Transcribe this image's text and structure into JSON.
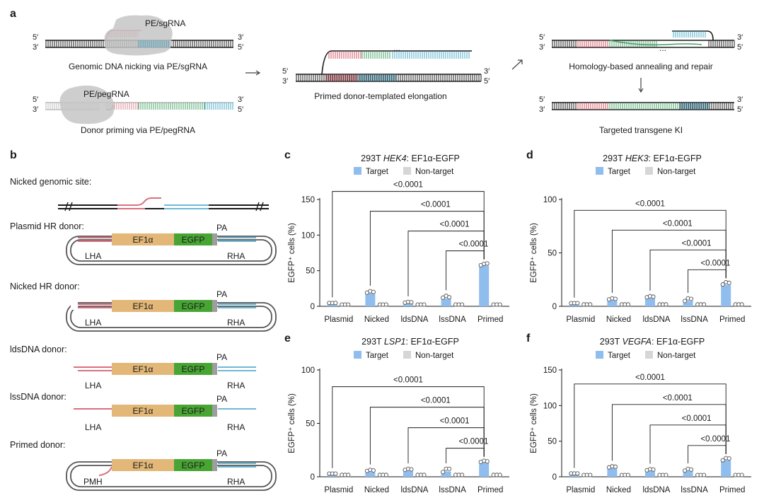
{
  "panel_a": {
    "letter": "a",
    "five": "5′",
    "three": "3′",
    "pe_sgrna": "PE/sgRNA",
    "pe_pegrna": "PE/pegRNA",
    "caption_nicking": "Genomic DNA nicking via PE/sgRNA",
    "caption_priming": "Donor priming via PE/pegRNA",
    "caption_elongation": "Primed donor-templated elongation",
    "ellipsis": "...",
    "caption_annealing": "Homology-based annealing and repair",
    "caption_ki": "Targeted transgene KI"
  },
  "panel_b": {
    "letter": "b",
    "site_label": "Nicked genomic site:",
    "donors": [
      {
        "title": "Plasmid HR donor:",
        "left_arm": "LHA",
        "promoter": "EF1α",
        "gene": "EGFP",
        "polya": "PA",
        "right_arm": "RHA"
      },
      {
        "title": "Nicked HR donor:",
        "left_arm": "LHA",
        "promoter": "EF1α",
        "gene": "EGFP",
        "polya": "PA",
        "right_arm": "RHA"
      },
      {
        "title": "ldsDNA donor:",
        "left_arm": "LHA",
        "promoter": "EF1α",
        "gene": "EGFP",
        "polya": "PA",
        "right_arm": "RHA"
      },
      {
        "title": "lssDNA donor:",
        "left_arm": "LHA",
        "promoter": "EF1α",
        "gene": "EGFP",
        "polya": "PA",
        "right_arm": "RHA"
      },
      {
        "title": "Primed donor:",
        "left_arm": "PMH",
        "promoter": "EF1α",
        "gene": "EGFP",
        "polya": "PA",
        "right_arm": "RHA"
      }
    ]
  },
  "colors": {
    "target": "#8fbdee",
    "nontarget": "#d6d6d6",
    "lha": "#d9707f",
    "rha": "#6fb8d6",
    "ef1a": "#e2b777",
    "egfp": "#48a534",
    "pa": "#9e9e9e",
    "green_strand": "#46a065",
    "cyan_strand": "#45a9c8",
    "red_strand": "#d0505f",
    "enzyme": "#c6c6c6"
  },
  "legend": {
    "target": "Target",
    "nontarget": "Non-target"
  },
  "chart_data": [
    {
      "panel": "c",
      "type": "bar",
      "title_prefix": "293T ",
      "title_gene": "HEK4",
      "title_suffix": ": EF1α-EGFP",
      "ylabel": "EGFP⁺ cells (%)",
      "ylim": [
        0,
        150
      ],
      "yticks": [
        0,
        50,
        100,
        150
      ],
      "categories": [
        "Plasmid",
        "Nicked",
        "ldsDNA",
        "lssDNA",
        "Primed"
      ],
      "series": [
        {
          "name": "Target",
          "values": [
            2.5,
            18,
            3.5,
            11,
            57
          ],
          "points": [
            [
              2.5,
              2.4,
              2.6
            ],
            [
              17,
              19,
              18
            ],
            [
              3,
              4,
              3.5
            ],
            [
              10,
              12.5,
              10.5
            ],
            [
              55.5,
              57.5,
              58
            ]
          ]
        },
        {
          "name": "Non-target",
          "values": [
            0.3,
            0.3,
            0.3,
            0.3,
            0.3
          ],
          "points": [
            [
              0.3,
              0.3,
              0.3
            ],
            [
              0.3,
              0.3,
              0.3
            ],
            [
              0.3,
              0.3,
              0.3
            ],
            [
              0.3,
              0.3,
              0.3
            ],
            [
              0.3,
              0.3,
              0.3
            ]
          ]
        }
      ],
      "comparisons": [
        {
          "from": "Plasmid",
          "to": "Primed",
          "p": "<0.0001"
        },
        {
          "from": "Nicked",
          "to": "Primed",
          "p": "<0.0001"
        },
        {
          "from": "ldsDNA",
          "to": "Primed",
          "p": "<0.0001"
        },
        {
          "from": "lssDNA",
          "to": "Primed",
          "p": "<0.0001"
        }
      ]
    },
    {
      "panel": "d",
      "type": "bar",
      "title_prefix": "293T ",
      "title_gene": "HEK3",
      "title_suffix": ": EF1α-EGFP",
      "ylabel": "EGFP⁺ cells (%)",
      "ylim": [
        0,
        100
      ],
      "yticks": [
        0,
        50,
        100
      ],
      "categories": [
        "Plasmid",
        "Nicked",
        "ldsDNA",
        "lssDNA",
        "Primed"
      ],
      "series": [
        {
          "name": "Target",
          "values": [
            1.5,
            5.5,
            7.5,
            5,
            20
          ],
          "points": [
            [
              1.5,
              1.5,
              1.5
            ],
            [
              5,
              6,
              5.5
            ],
            [
              7,
              8,
              7.5
            ],
            [
              3.5,
              6,
              5.5
            ],
            [
              19,
              21,
              20.5
            ]
          ]
        },
        {
          "name": "Non-target",
          "values": [
            0.3,
            0.3,
            0.3,
            0.3,
            0.3
          ],
          "points": [
            [
              0.3,
              0.3,
              0.3
            ],
            [
              0.3,
              0.3,
              0.3
            ],
            [
              0.3,
              0.3,
              0.3
            ],
            [
              0.3,
              0.3,
              0.3
            ],
            [
              0.3,
              0.3,
              0.3
            ]
          ]
        }
      ],
      "comparisons": [
        {
          "from": "Plasmid",
          "to": "Primed",
          "p": "<0.0001"
        },
        {
          "from": "Nicked",
          "to": "Primed",
          "p": "<0.0001"
        },
        {
          "from": "ldsDNA",
          "to": "Primed",
          "p": "<0.0001"
        },
        {
          "from": "lssDNA",
          "to": "Primed",
          "p": "<0.0001"
        }
      ]
    },
    {
      "panel": "e",
      "type": "bar",
      "title_prefix": "293T ",
      "title_gene": "LSP1",
      "title_suffix": ": EF1α-EGFP",
      "ylabel": "EGFP⁺ cells (%)",
      "ylim": [
        0,
        100
      ],
      "yticks": [
        0,
        50,
        100
      ],
      "categories": [
        "Plasmid",
        "Nicked",
        "ldsDNA",
        "lssDNA",
        "Primed"
      ],
      "series": [
        {
          "name": "Target",
          "values": [
            1.5,
            4.5,
            5.5,
            5,
            13
          ],
          "points": [
            [
              1.5,
              1.5,
              1.5
            ],
            [
              4,
              5,
              4.5
            ],
            [
              5,
              6,
              5.5
            ],
            [
              3,
              6,
              6
            ],
            [
              12.5,
              13.5,
              13
            ]
          ]
        },
        {
          "name": "Non-target",
          "values": [
            0.3,
            0.3,
            0.3,
            0.3,
            0.3
          ],
          "points": [
            [
              0.3,
              0.3,
              0.3
            ],
            [
              0.3,
              0.3,
              0.3
            ],
            [
              0.3,
              0.3,
              0.3
            ],
            [
              0.3,
              0.3,
              0.3
            ],
            [
              0.3,
              0.3,
              0.3
            ]
          ]
        }
      ],
      "comparisons": [
        {
          "from": "Plasmid",
          "to": "Primed",
          "p": "<0.0001"
        },
        {
          "from": "Nicked",
          "to": "Primed",
          "p": "<0.0001"
        },
        {
          "from": "ldsDNA",
          "to": "Primed",
          "p": "<0.0001"
        },
        {
          "from": "lssDNA",
          "to": "Primed",
          "p": "<0.0001"
        }
      ]
    },
    {
      "panel": "f",
      "type": "bar",
      "title_prefix": "293T ",
      "title_gene": "VEGFA",
      "title_suffix": ": EF1α-EGFP",
      "ylabel": "EGFP⁺ cells (%)",
      "ylim": [
        0,
        150
      ],
      "yticks": [
        0,
        50,
        100,
        150
      ],
      "categories": [
        "Plasmid",
        "Nicked",
        "ldsDNA",
        "lssDNA",
        "Primed"
      ],
      "series": [
        {
          "name": "Target",
          "values": [
            2.5,
            12,
            8,
            8,
            23
          ],
          "points": [
            [
              2.5,
              2.5,
              2.5
            ],
            [
              11,
              12.5,
              12
            ],
            [
              7,
              8.5,
              8
            ],
            [
              6.5,
              9,
              8
            ],
            [
              21,
              24,
              23.5
            ]
          ]
        },
        {
          "name": "Non-target",
          "values": [
            0.3,
            0.3,
            0.3,
            0.3,
            0.3
          ],
          "points": [
            [
              0.3,
              0.3,
              0.3
            ],
            [
              0.3,
              0.3,
              0.3
            ],
            [
              0.3,
              0.3,
              0.3
            ],
            [
              0.3,
              0.3,
              0.3
            ],
            [
              0.3,
              0.3,
              0.3
            ]
          ]
        }
      ],
      "comparisons": [
        {
          "from": "Plasmid",
          "to": "Primed",
          "p": "<0.0001"
        },
        {
          "from": "Nicked",
          "to": "Primed",
          "p": "<0.0001"
        },
        {
          "from": "ldsDNA",
          "to": "Primed",
          "p": "<0.0001"
        },
        {
          "from": "lssDNA",
          "to": "Primed",
          "p": "<0.0001"
        }
      ]
    }
  ]
}
